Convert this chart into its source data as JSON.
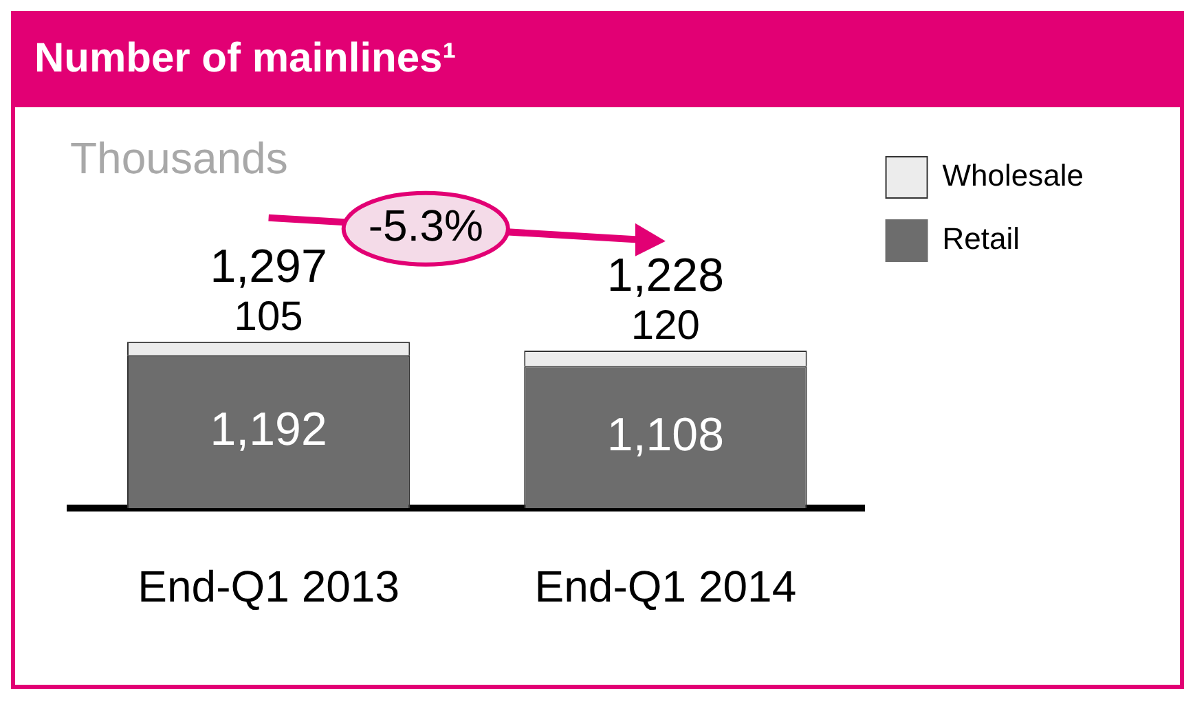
{
  "chart_data": {
    "type": "bar",
    "title": "Number of mainlines¹",
    "subtitle": "Thousands",
    "categories": [
      "End-Q1 2013",
      "End-Q1 2014"
    ],
    "stacked": true,
    "legend": "top right",
    "grid": false,
    "tick_labels": "x",
    "totals": [
      "1,297",
      "1,228"
    ],
    "annotations": [
      "-5.3%"
    ],
    "series": [
      {
        "name": "Retail",
        "color": "#6d6d6d",
        "values": [
          1192,
          1108
        ],
        "value_labels": [
          "1,192",
          "1,108"
        ]
      },
      {
        "name": "Wholesale",
        "color": "#ececec",
        "values": [
          105,
          120
        ],
        "value_labels": [
          "105",
          "120"
        ]
      }
    ]
  }
}
